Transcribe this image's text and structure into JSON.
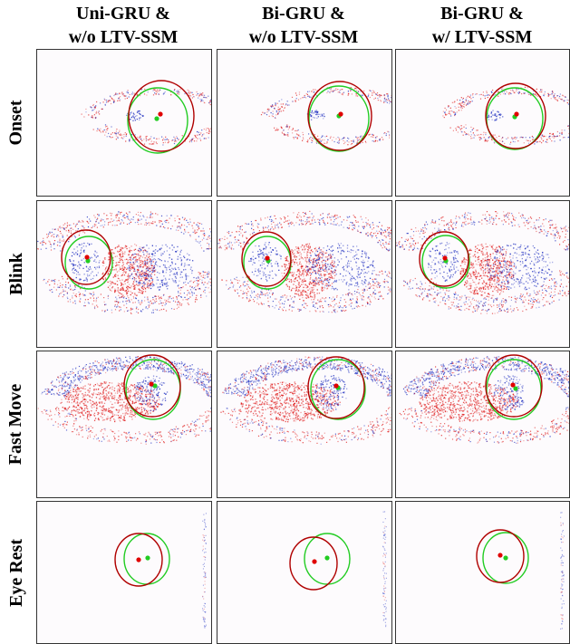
{
  "columns": [
    {
      "line1": "Uni-GRU &",
      "line2": "w/o LTV-SSM"
    },
    {
      "line1": "Bi-GRU &",
      "line2": "w/o LTV-SSM"
    },
    {
      "line1": "Bi-GRU &",
      "line2": "w/ LTV-SSM"
    }
  ],
  "rows": [
    {
      "label": "Onset",
      "scene": "onset"
    },
    {
      "label": "Blink",
      "scene": "blink"
    },
    {
      "label": "Fast Move",
      "scene": "fast"
    },
    {
      "label": "Eye Rest",
      "scene": "rest"
    }
  ],
  "colors": {
    "prediction": "#b00000",
    "ground_truth": "#22cc22",
    "event_positive": "#e02020",
    "event_negative": "#2030c0",
    "panel_border": "#333333"
  }
}
